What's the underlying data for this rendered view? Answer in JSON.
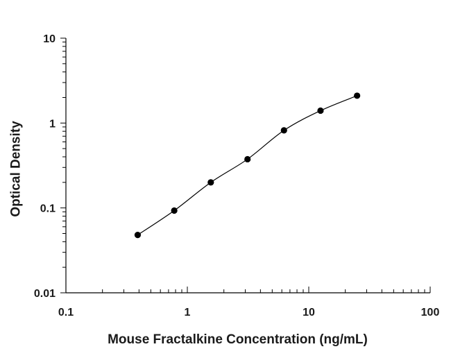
{
  "chart_data": {
    "type": "scatter",
    "title": "",
    "xlabel": "Mouse Fractalkine Concentration (ng/mL)",
    "ylabel": "Optical Density",
    "x_scale": "log",
    "y_scale": "log",
    "xlim": [
      0.1,
      100
    ],
    "ylim": [
      0.01,
      10
    ],
    "x_ticks": [
      "0.1",
      "1",
      "10",
      "100"
    ],
    "y_ticks": [
      "0.01",
      "0.1",
      "1",
      "10"
    ],
    "grid": false,
    "legend": "none",
    "fit_curve": true,
    "series": [
      {
        "x": [
          0.39,
          0.78,
          1.56,
          3.13,
          6.25,
          12.5,
          25
        ],
        "y": [
          0.048,
          0.093,
          0.2,
          0.375,
          0.82,
          1.4,
          2.1
        ]
      }
    ]
  }
}
